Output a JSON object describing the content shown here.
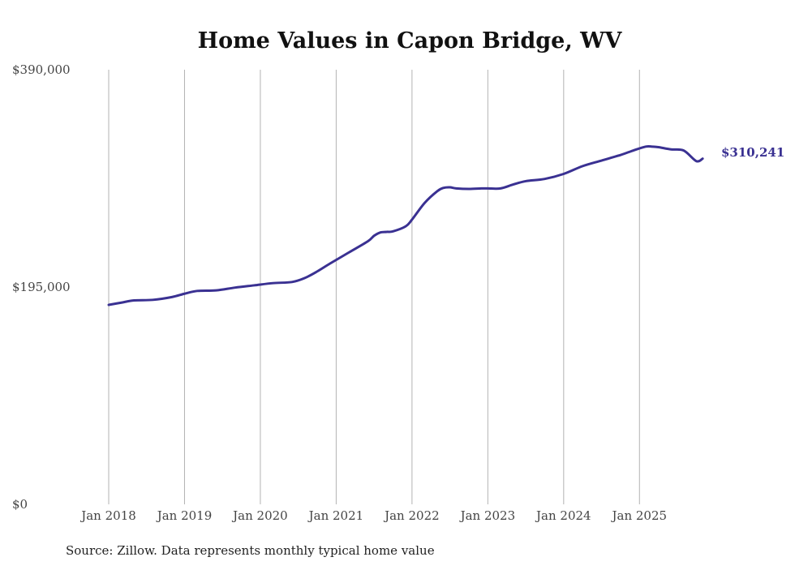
{
  "chart_data": {
    "type": "line",
    "title": "Home Values in Capon Bridge, WV",
    "xlabel": "",
    "ylabel": "",
    "source_note": "Source: Zillow. Data represents monthly typical home value",
    "y_ticks": [
      {
        "value": 0,
        "label": "$0"
      },
      {
        "value": 195000,
        "label": "$195,000"
      },
      {
        "value": 390000,
        "label": "$390,000"
      }
    ],
    "ylim": [
      0,
      390000
    ],
    "x_ticks": [
      {
        "value": 2018.0,
        "label": "Jan 2018"
      },
      {
        "value": 2019.0,
        "label": "Jan 2019"
      },
      {
        "value": 2020.0,
        "label": "Jan 2020"
      },
      {
        "value": 2021.0,
        "label": "Jan 2021"
      },
      {
        "value": 2022.0,
        "label": "Jan 2022"
      },
      {
        "value": 2023.0,
        "label": "Jan 2023"
      },
      {
        "value": 2024.0,
        "label": "Jan 2024"
      },
      {
        "value": 2025.0,
        "label": "Jan 2025"
      }
    ],
    "xlim": [
      2018.0,
      2025.917
    ],
    "grid": "vertical",
    "end_label": "$310,241",
    "series": [
      {
        "name": "Typical home value",
        "color": "#3a3192",
        "x": [
          2018.0,
          2018.167,
          2018.333,
          2018.583,
          2018.833,
          2019.0,
          2019.167,
          2019.417,
          2019.667,
          2019.917,
          2020.167,
          2020.417,
          2020.583,
          2020.75,
          2020.917,
          2021.167,
          2021.417,
          2021.5,
          2021.583,
          2021.667,
          2021.75,
          2021.917,
          2022.0,
          2022.167,
          2022.333,
          2022.417,
          2022.5,
          2022.583,
          2022.75,
          2022.917,
          2023.0,
          2023.167,
          2023.333,
          2023.5,
          2023.75,
          2024.0,
          2024.25,
          2024.5,
          2024.75,
          2024.917,
          2025.083,
          2025.167,
          2025.25,
          2025.417,
          2025.583,
          2025.75,
          2025.833
        ],
        "values": [
          179000,
          181000,
          183000,
          183500,
          186000,
          189000,
          191500,
          192000,
          194500,
          196500,
          198500,
          199500,
          203000,
          209000,
          216000,
          226000,
          236000,
          241000,
          244000,
          244500,
          245000,
          249500,
          255500,
          270500,
          281000,
          284000,
          284500,
          283500,
          283000,
          283500,
          283500,
          283500,
          287000,
          290000,
          292000,
          296500,
          303500,
          308500,
          313500,
          317500,
          321000,
          321000,
          320500,
          318500,
          317500,
          308000,
          310241
        ]
      }
    ]
  }
}
